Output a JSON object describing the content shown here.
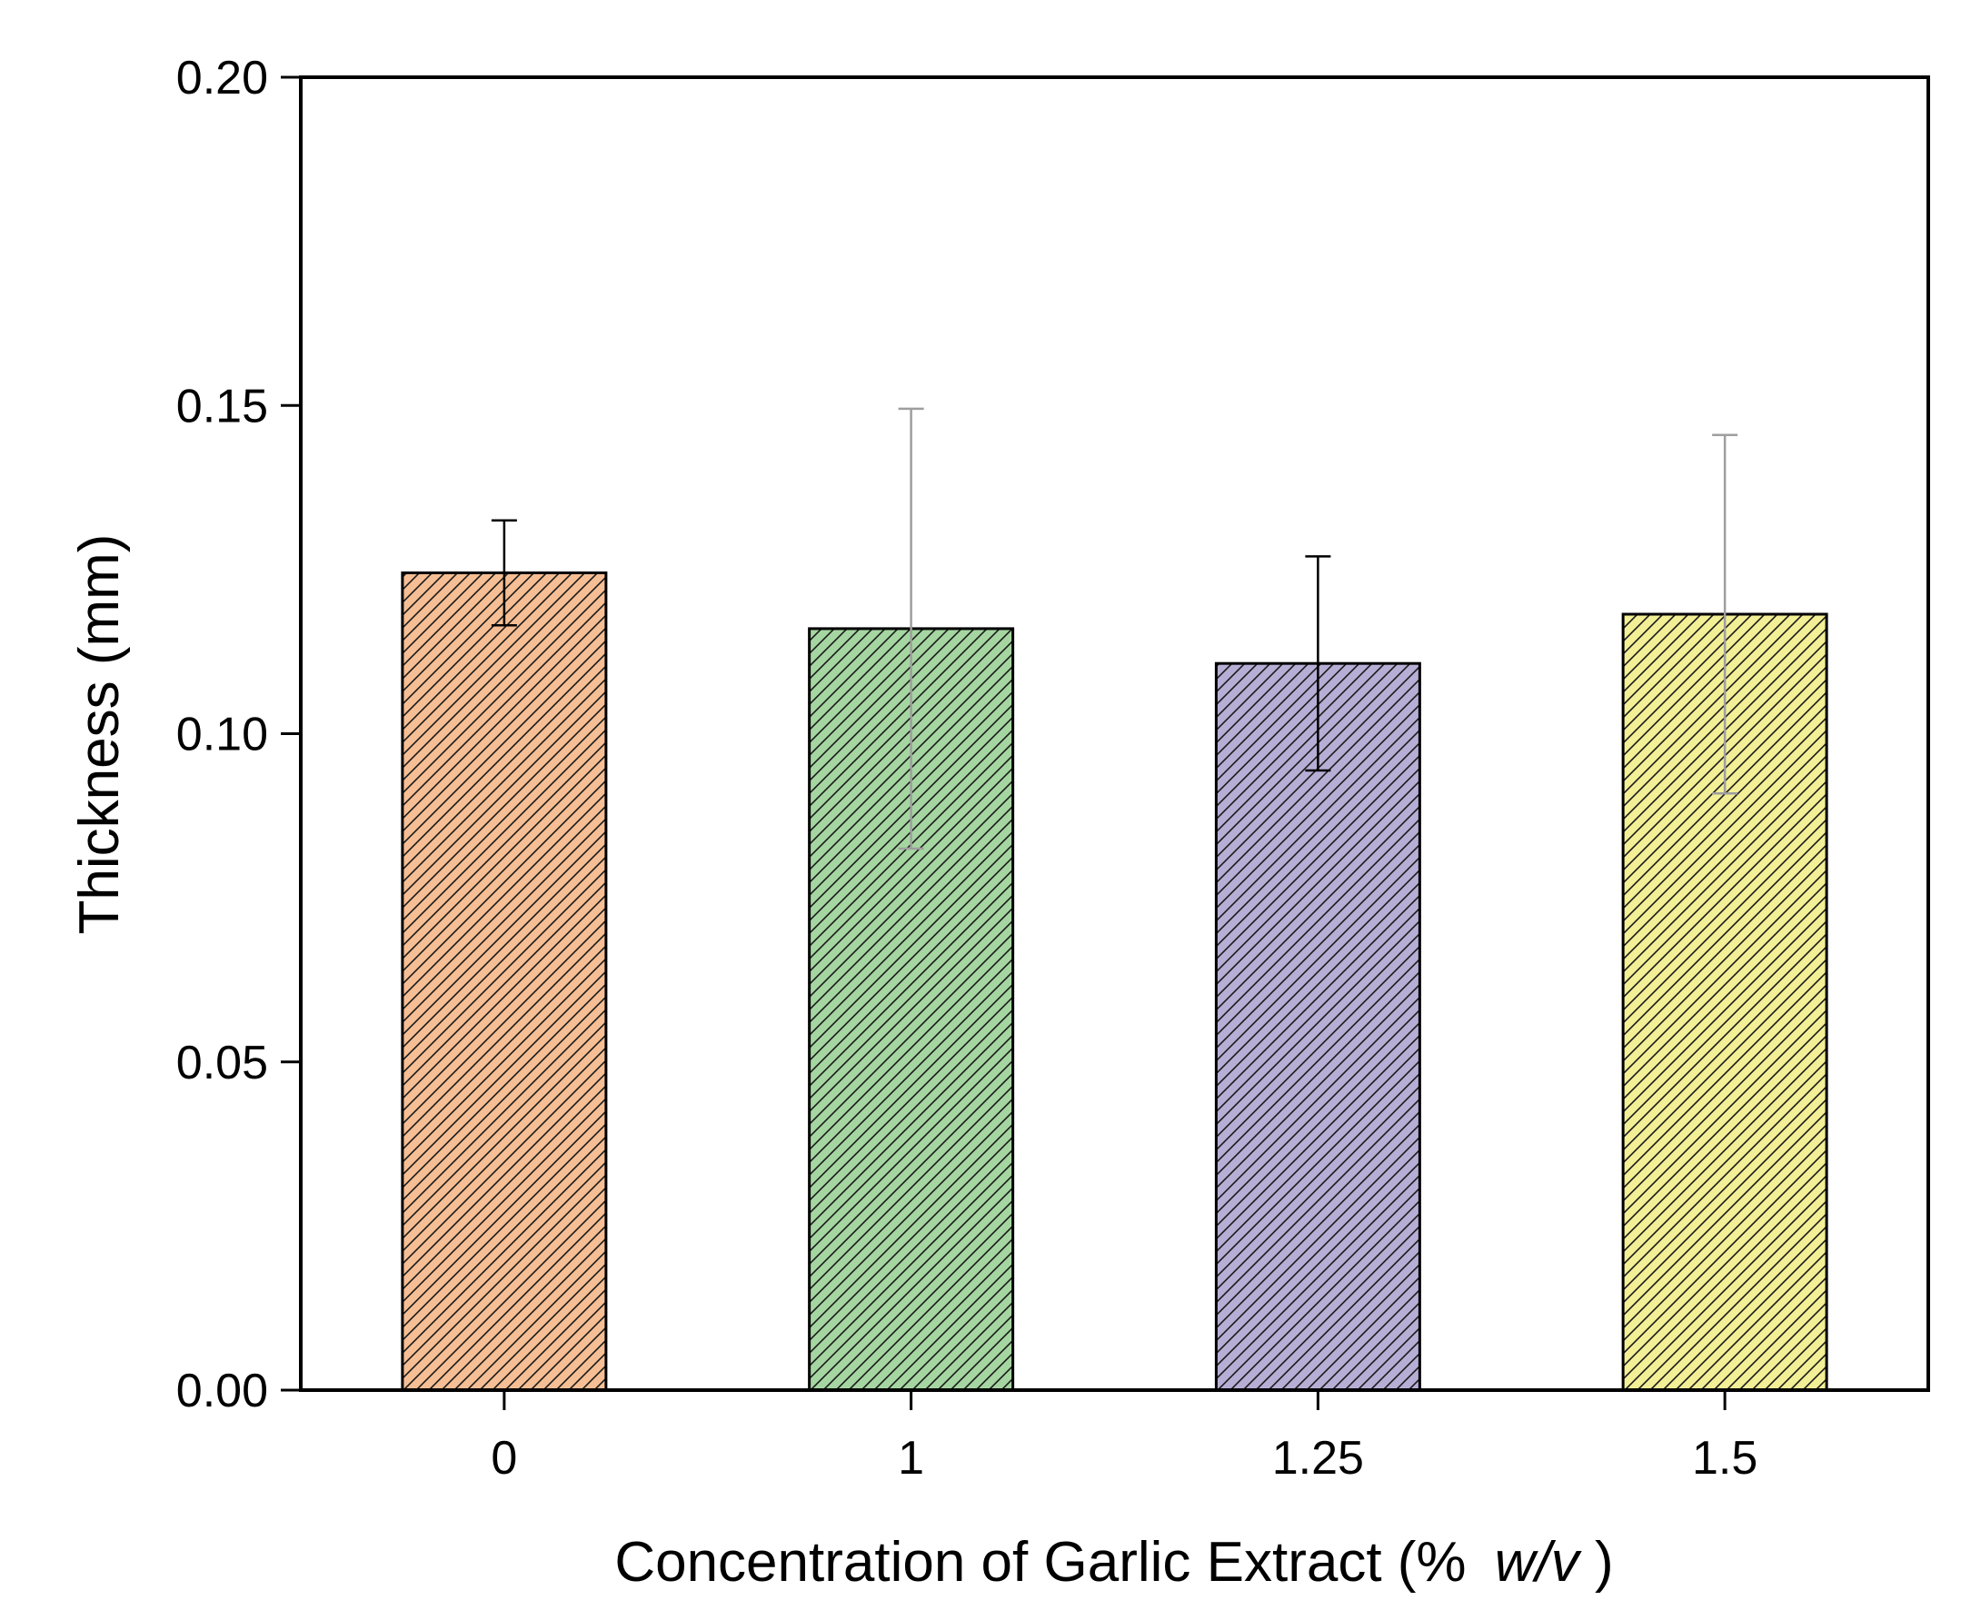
{
  "chart_data": {
    "type": "bar",
    "title": "",
    "xlabel": "Concentration of Garlic Extract (%",
    "xlabel_italic": "w/v",
    "xlabel_suffix": ")",
    "ylabel": "Thickness (mm)",
    "ylim": [
      0,
      0.2
    ],
    "yticks": [
      0,
      0.05,
      0.1,
      0.15,
      0.2
    ],
    "ytick_labels": [
      "0.00",
      "0.05",
      "0.10",
      "0.15",
      "0.20"
    ],
    "categories": [
      "0",
      "1",
      "1.25",
      "1.5"
    ],
    "values": [
      0.1245,
      0.116,
      0.1107,
      0.1182
    ],
    "errors": [
      0.008,
      0.0335,
      0.0163,
      0.0273
    ],
    "colors": [
      "#f6be94",
      "#a5d6a1",
      "#b7aed5",
      "#f2ef96"
    ],
    "errorbar_colors": [
      "#000000",
      "#9e9e9e",
      "#000000",
      "#9e9e9e"
    ],
    "hatch": "diagonal",
    "grid": false
  }
}
